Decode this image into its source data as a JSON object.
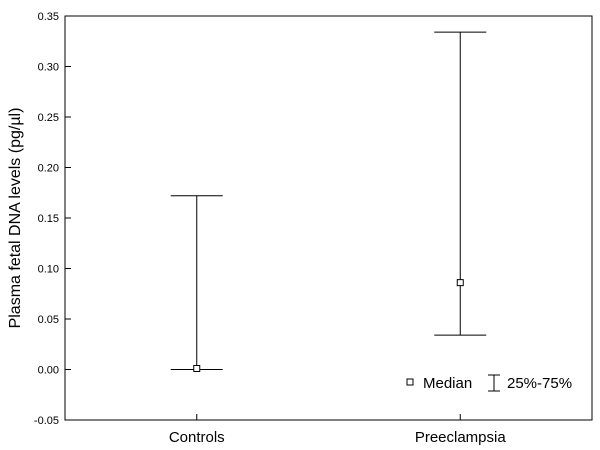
{
  "chart_data": {
    "type": "box",
    "ylabel": "Plasma fetal DNA levels (pg/µl)",
    "xlabel": "",
    "ylim": [
      -0.05,
      0.35
    ],
    "yticks": [
      "-0.05",
      "0.00",
      "0.05",
      "0.10",
      "0.15",
      "0.20",
      "0.25",
      "0.30",
      "0.35"
    ],
    "categories": [
      "Controls",
      "Preeclampsia"
    ],
    "groups": [
      {
        "category": "Controls",
        "median": 0.001,
        "q25": 0.0,
        "q75": 0.172
      },
      {
        "category": "Preeclampsia",
        "median": 0.086,
        "q25": 0.034,
        "q75": 0.334
      }
    ],
    "legend": {
      "position": "bottom-right",
      "median_label": "Median",
      "range_label": "25%-75%"
    }
  }
}
